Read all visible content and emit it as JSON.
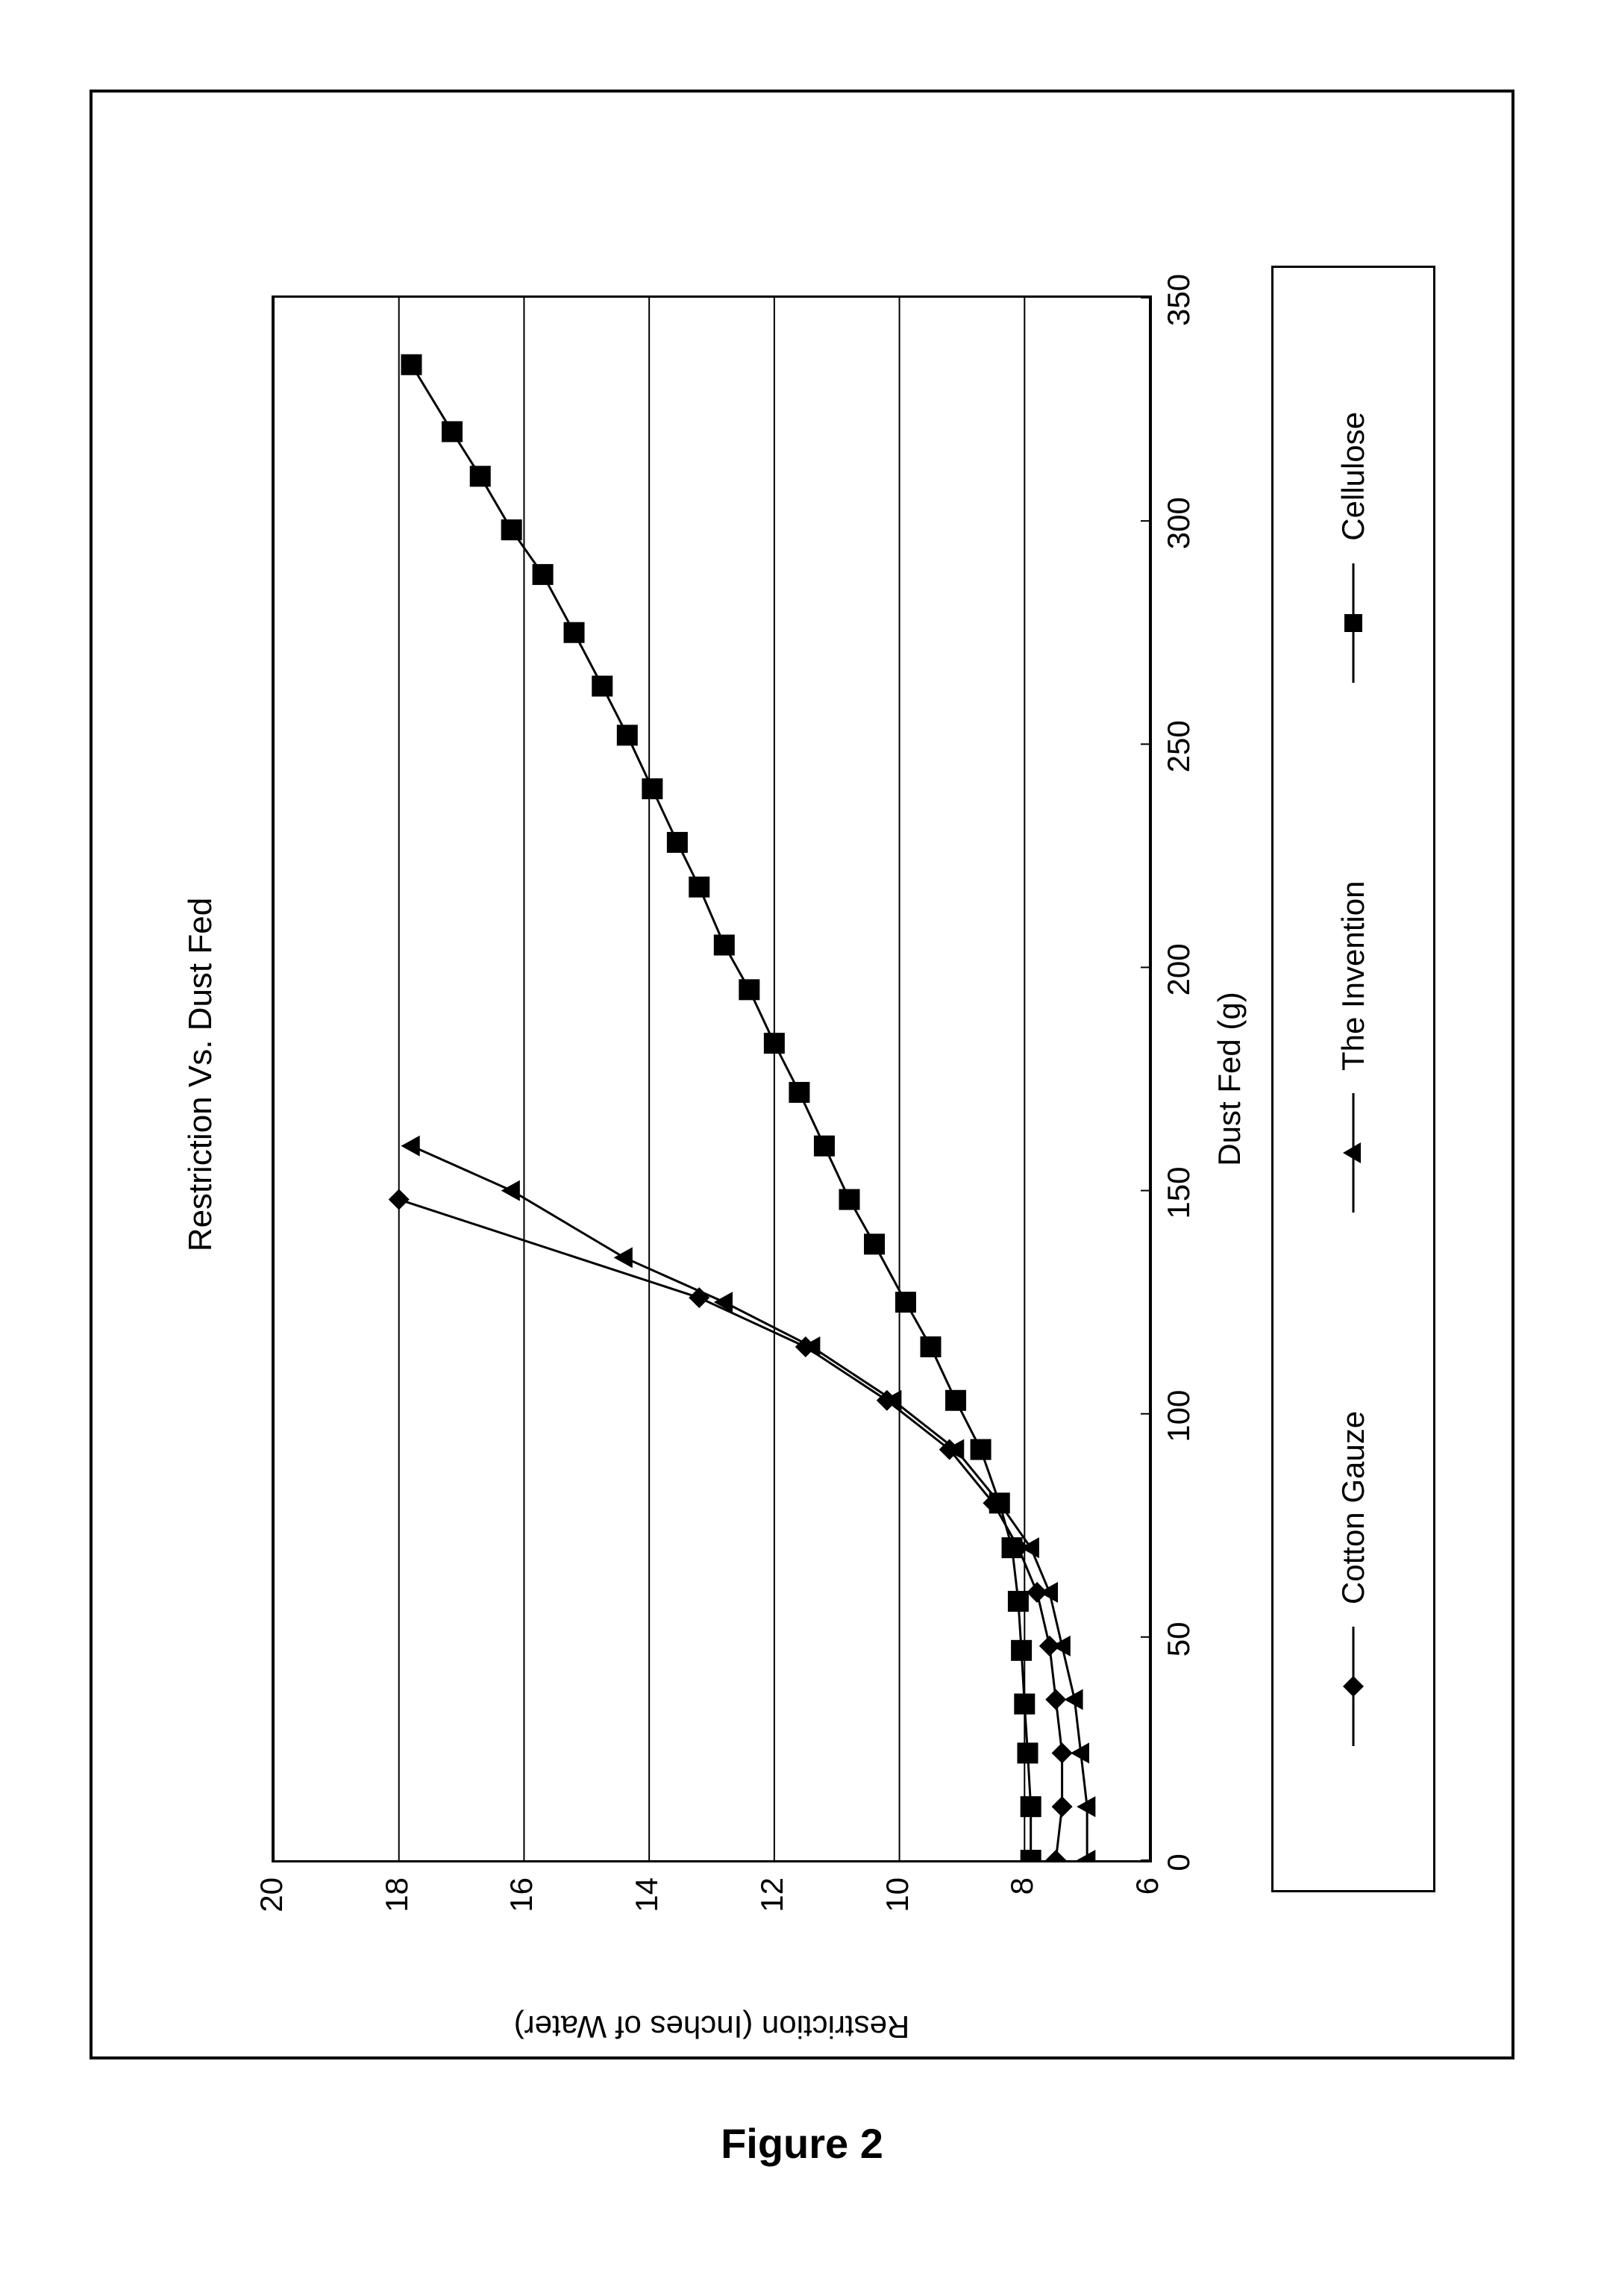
{
  "caption": "Figure 2",
  "chart": {
    "type": "line",
    "title": "Restriction Vs. Dust Fed",
    "title_fontsize": 44,
    "xlabel": "Dust Fed (g)",
    "ylabel": "Restriction (Inches of Water)",
    "label_fontsize": 42,
    "xlim": [
      0,
      350
    ],
    "ylim": [
      6,
      20
    ],
    "xtick_step": 50,
    "ytick_step": 2,
    "xticks": [
      0,
      50,
      100,
      150,
      200,
      250,
      300,
      350
    ],
    "yticks": [
      6,
      8,
      10,
      12,
      14,
      16,
      18,
      20
    ],
    "background_color": "#ffffff",
    "grid_color": "#000000",
    "axis_color": "#000000",
    "line_width": 3,
    "marker_size": 14,
    "tick_fontsize": 42,
    "series": [
      {
        "name": "Cotton Gauze",
        "marker": "diamond",
        "color": "#000000",
        "points": [
          [
            0,
            7.5
          ],
          [
            12,
            7.4
          ],
          [
            24,
            7.4
          ],
          [
            36,
            7.5
          ],
          [
            48,
            7.6
          ],
          [
            60,
            7.8
          ],
          [
            70,
            8.1
          ],
          [
            80,
            8.5
          ],
          [
            92,
            9.2
          ],
          [
            103,
            10.2
          ],
          [
            115,
            11.5
          ],
          [
            126,
            13.2
          ],
          [
            148,
            18.0
          ]
        ]
      },
      {
        "name": "The Invention",
        "marker": "triangle",
        "color": "#000000",
        "points": [
          [
            0,
            7.0
          ],
          [
            12,
            7.0
          ],
          [
            24,
            7.1
          ],
          [
            36,
            7.2
          ],
          [
            48,
            7.4
          ],
          [
            60,
            7.6
          ],
          [
            70,
            7.9
          ],
          [
            80,
            8.4
          ],
          [
            92,
            9.1
          ],
          [
            103,
            10.1
          ],
          [
            115,
            11.4
          ],
          [
            125,
            12.8
          ],
          [
            135,
            14.4
          ],
          [
            150,
            16.2
          ],
          [
            160,
            17.8
          ]
        ]
      },
      {
        "name": "Cellulose",
        "marker": "square",
        "color": "#000000",
        "points": [
          [
            0,
            7.9
          ],
          [
            12,
            7.9
          ],
          [
            24,
            7.95
          ],
          [
            35,
            8.0
          ],
          [
            47,
            8.05
          ],
          [
            58,
            8.1
          ],
          [
            70,
            8.2
          ],
          [
            80,
            8.4
          ],
          [
            92,
            8.7
          ],
          [
            103,
            9.1
          ],
          [
            115,
            9.5
          ],
          [
            125,
            9.9
          ],
          [
            138,
            10.4
          ],
          [
            148,
            10.8
          ],
          [
            160,
            11.2
          ],
          [
            172,
            11.6
          ],
          [
            183,
            12.0
          ],
          [
            195,
            12.4
          ],
          [
            205,
            12.8
          ],
          [
            218,
            13.2
          ],
          [
            228,
            13.55
          ],
          [
            240,
            13.95
          ],
          [
            252,
            14.35
          ],
          [
            263,
            14.75
          ],
          [
            275,
            15.2
          ],
          [
            288,
            15.7
          ],
          [
            298,
            16.2
          ],
          [
            310,
            16.7
          ],
          [
            320,
            17.15
          ],
          [
            335,
            17.8
          ]
        ]
      }
    ],
    "legend": {
      "items": [
        "Cotton Gauze",
        "The Invention",
        "Cellulose"
      ],
      "fontsize": 42,
      "border_color": "#000000"
    }
  }
}
